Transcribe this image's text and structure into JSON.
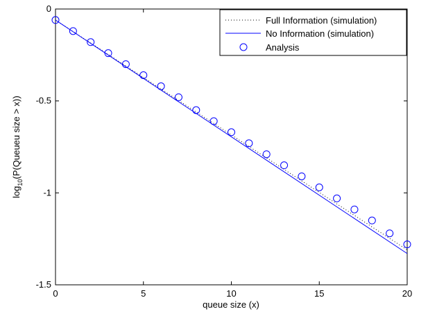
{
  "chart_data": {
    "type": "line",
    "title": "",
    "xlabel": "queue size (x)",
    "ylabel": {
      "prefix": "log",
      "subscript": "10",
      "suffix": "(P(Queueu size > x))"
    },
    "xlim": [
      0,
      20
    ],
    "ylim": [
      -1.5,
      0
    ],
    "xticks": [
      0,
      5,
      10,
      15,
      20
    ],
    "yticks": [
      0,
      -0.5,
      -1,
      -1.5
    ],
    "xtick_labels": [
      "0",
      "5",
      "10",
      "15",
      "20"
    ],
    "ytick_labels": [
      "0",
      "-0.5",
      "-1",
      "-1.5"
    ],
    "grid": false,
    "legend_position": "top-right",
    "series": [
      {
        "name": "Full Information (simulation)",
        "style": "dotted",
        "color": "#000000",
        "x": [
          0,
          20
        ],
        "y": [
          -0.06,
          -1.31
        ]
      },
      {
        "name": "No Information (simulation)",
        "style": "solid",
        "color": "#0000ff",
        "x": [
          0,
          20
        ],
        "y": [
          -0.06,
          -1.33
        ]
      },
      {
        "name": "Analysis",
        "style": "marker-circle",
        "color": "#0000ff",
        "x": [
          0,
          1,
          2,
          3,
          4,
          5,
          6,
          7,
          8,
          9,
          10,
          11,
          12,
          13,
          14,
          15,
          16,
          17,
          18,
          19,
          20
        ],
        "y": [
          -0.06,
          -0.12,
          -0.18,
          -0.24,
          -0.3,
          -0.36,
          -0.42,
          -0.48,
          -0.55,
          -0.61,
          -0.67,
          -0.73,
          -0.79,
          -0.85,
          -0.91,
          -0.97,
          -1.03,
          -1.09,
          -1.15,
          -1.22,
          -1.28
        ]
      }
    ]
  }
}
